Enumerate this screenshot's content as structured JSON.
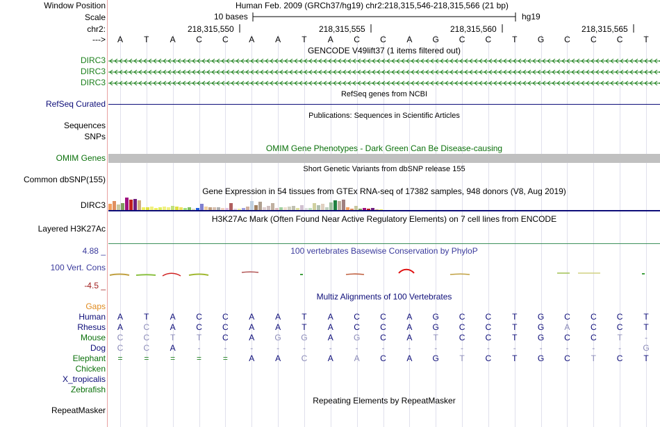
{
  "header": {
    "window_position_label": "Window Position",
    "window_position_value": "Human Feb. 2009 (GRCh37/hg19)   chr2:218,315,546-218,315,566 (21 bp)",
    "scale_label": "Scale",
    "scale_text": "10 bases",
    "assembly": "hg19",
    "chrom_label": "chr2:",
    "positions": [
      "218,315,550",
      "218,315,555",
      "218,315,560",
      "218,315,565"
    ],
    "strand_label": "--->",
    "bases": [
      "A",
      "T",
      "A",
      "C",
      "C",
      "A",
      "A",
      "T",
      "A",
      "C",
      "C",
      "A",
      "G",
      "C",
      "C",
      "T",
      "G",
      "C",
      "C",
      "C",
      "T"
    ]
  },
  "gencode": {
    "title": "GENCODE V49lift37 (1 items filtered out)",
    "tracks": [
      "DIRC3",
      "DIRC3",
      "DIRC3"
    ],
    "color": "#1a7f1a"
  },
  "refseq": {
    "title": "RefSeq genes from NCBI",
    "label": "RefSeq Curated",
    "color": "#0c0c78"
  },
  "publications": {
    "title": "Publications: Sequences in Scientific Articles",
    "labels": [
      "Sequences",
      "SNPs"
    ]
  },
  "omim": {
    "title": "OMIM Gene Phenotypes - Dark Green Can Be Disease-causing",
    "label": "OMIM Genes",
    "color": "#0a700a"
  },
  "dbsnp": {
    "title": "Short Genetic Variants from dbSNP release 155",
    "label": "Common dbSNP(155)"
  },
  "gtex": {
    "title": "Gene Expression in 54 tissues from GTEx RNA-seq of 17382 samples, 948 donors (V8, Aug 2019)",
    "label": "DIRC3"
  },
  "h3k27ac": {
    "title": "H3K27Ac Mark (Often Found Near Active Regulatory Elements) on 7 cell lines from ENCODE",
    "label": "Layered H3K27Ac"
  },
  "phylop": {
    "title": "100 vertebrates Basewise Conservation by PhyloP",
    "label": "100 Vert. Cons",
    "max_label": "4.88 _",
    "min_label": "-4.5 _",
    "color": "#3a3a9c"
  },
  "multiz": {
    "title": "Multiz Alignments of 100 Vertebrates",
    "gaps_label": "Gaps",
    "species": [
      {
        "name": "Human",
        "color": "#0c0c78",
        "bases": [
          "A",
          "T",
          "A",
          "C",
          "C",
          "A",
          "A",
          "T",
          "A",
          "C",
          "C",
          "A",
          "G",
          "C",
          "C",
          "T",
          "G",
          "C",
          "C",
          "C",
          "T"
        ]
      },
      {
        "name": "Rhesus",
        "color": "#0c0c78",
        "bases": [
          "A",
          "C",
          "A",
          "C",
          "C",
          "A",
          "A",
          "T",
          "A",
          "C",
          "C",
          "A",
          "G",
          "C",
          "C",
          "T",
          "G",
          "A",
          "C",
          "C",
          "T"
        ]
      },
      {
        "name": "Mouse",
        "color": "#0a700a",
        "bases": [
          "C",
          "C",
          "T",
          "T",
          "C",
          "A",
          "G",
          "G",
          "A",
          "G",
          "C",
          "A",
          "T",
          "C",
          "C",
          "T",
          "G",
          "C",
          "C",
          "T",
          "-"
        ]
      },
      {
        "name": "Dog",
        "color": "#0c0c78",
        "bases": [
          "C",
          "C",
          "A",
          "-",
          "-",
          "-",
          "-",
          "-",
          "-",
          "-",
          "-",
          "-",
          "-",
          "-",
          "-",
          "-",
          "-",
          "-",
          "-",
          "-",
          "G"
        ]
      },
      {
        "name": "Elephant",
        "color": "#0a700a",
        "bases": [
          "=",
          "=",
          "=",
          "=",
          "=",
          "A",
          "A",
          "C",
          "A",
          "A",
          "C",
          "A",
          "G",
          "T",
          "C",
          "T",
          "G",
          "C",
          "T",
          "C",
          "T"
        ]
      },
      {
        "name": "Chicken",
        "color": "#0a700a",
        "bases": []
      },
      {
        "name": "X_tropicalis",
        "color": "#0c0c78",
        "bases": []
      },
      {
        "name": "Zebrafish",
        "color": "#0a700a",
        "bases": []
      }
    ]
  },
  "repeatmasker": {
    "title": "Repeating Elements by RepeatMasker",
    "label": "RepeatMasker"
  }
}
